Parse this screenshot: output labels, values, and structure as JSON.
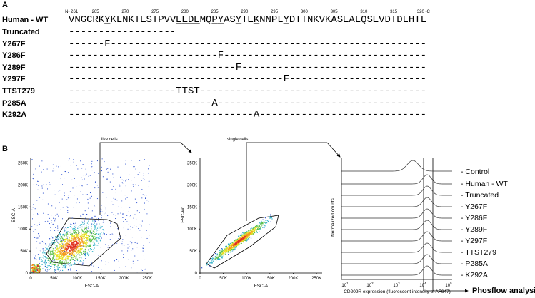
{
  "panel_a": {
    "letter": "A",
    "ruler": [
      {
        "position": 261,
        "label": "N- 261"
      },
      {
        "position": 265,
        "label": "265"
      },
      {
        "position": 270,
        "label": "270"
      },
      {
        "position": 275,
        "label": "275"
      },
      {
        "position": 280,
        "label": "280"
      },
      {
        "position": 285,
        "label": "285"
      },
      {
        "position": 290,
        "label": "290"
      },
      {
        "position": 295,
        "label": "295"
      },
      {
        "position": 300,
        "label": "300"
      },
      {
        "position": 305,
        "label": "305"
      },
      {
        "position": 310,
        "label": "310"
      },
      {
        "position": 315,
        "label": "315"
      },
      {
        "position": 320,
        "label": "320 -C"
      }
    ],
    "underlined_positions": [
      267,
      279,
      280,
      281,
      282,
      285,
      286,
      289,
      292,
      297
    ],
    "rows": [
      {
        "name": "Human - WT",
        "sequence": "VNGCRKYKLNKTESTPVVEEDEMQPYASYTEKNNPLYDTTNKVKASEALQSEVDTDLHTL"
      },
      {
        "name": "Truncated",
        "sequence": "------------------"
      },
      {
        "name": "Y267F",
        "sequence": "------F-----------------------------------------------------"
      },
      {
        "name": "Y286F",
        "sequence": "-------------------------F----------------------------------"
      },
      {
        "name": "Y289F",
        "sequence": "----------------------------F-------------------------------"
      },
      {
        "name": "Y297F",
        "sequence": "------------------------------------F-----------------------"
      },
      {
        "name": "TTST279",
        "sequence": "------------------TTST--------------------------------------"
      },
      {
        "name": "P285A",
        "sequence": "------------------------A-----------------------------------"
      },
      {
        "name": "K292A",
        "sequence": "-------------------------------A----------------------------"
      }
    ]
  },
  "panel_b": {
    "letter": "B",
    "plots": [
      {
        "gate": "live cells",
        "xlabel": "FSC-A",
        "ylabel": "SSC-A",
        "xlim": [
          0,
          262144
        ],
        "ylim": [
          0,
          262144
        ],
        "xticks": [
          {
            "value": 0,
            "label": "0"
          },
          {
            "value": 50000,
            "label": "50K"
          },
          {
            "value": 100000,
            "label": "100K"
          },
          {
            "value": 150000,
            "label": "150K"
          },
          {
            "value": 200000,
            "label": "200K"
          },
          {
            "value": 250000,
            "label": "250K"
          }
        ],
        "yticks": [
          {
            "value": 0,
            "label": "0"
          },
          {
            "value": 50000,
            "label": "50K"
          },
          {
            "value": 100000,
            "label": "100K"
          },
          {
            "value": 150000,
            "label": "150K"
          },
          {
            "value": 200000,
            "label": "200K"
          },
          {
            "value": 250000,
            "label": "250K"
          }
        ]
      },
      {
        "gate": "single cells",
        "xlabel": "FSC-A",
        "ylabel": "FSC-W",
        "xlim": [
          0,
          262144
        ],
        "ylim": [
          0,
          262144
        ],
        "xticks": [
          {
            "value": 0,
            "label": "0"
          },
          {
            "value": 50000,
            "label": "50K"
          },
          {
            "value": 100000,
            "label": "100K"
          },
          {
            "value": 150000,
            "label": "150K"
          },
          {
            "value": 200000,
            "label": "200K"
          },
          {
            "value": 250000,
            "label": "250K"
          }
        ],
        "yticks": [
          {
            "value": 0,
            "label": "0"
          },
          {
            "value": 50000,
            "label": "50K"
          },
          {
            "value": 100000,
            "label": "100K"
          },
          {
            "value": 150000,
            "label": "150K"
          },
          {
            "value": 200000,
            "label": "200K"
          },
          {
            "value": 250000,
            "label": "250K"
          }
        ]
      }
    ],
    "histogram": {
      "ylabel": "Normalized counts",
      "xlabel": "CD209R expression (fluorescent intensity of AF647)",
      "xticks": [
        {
          "base": "10",
          "exp": "1"
        },
        {
          "base": "10",
          "exp": "2"
        },
        {
          "base": "10",
          "exp": "3"
        },
        {
          "base": "10",
          "exp": "4"
        },
        {
          "base": "10",
          "exp": "5"
        }
      ],
      "legend": [
        "- Control",
        "- Human - WT",
        "- Truncated",
        "- Y267F",
        "- Y286F",
        "- Y289F",
        "- Y297F",
        "- TTST279",
        "- P285A",
        "- K292A"
      ],
      "output": "Phosflow analysis"
    }
  }
}
